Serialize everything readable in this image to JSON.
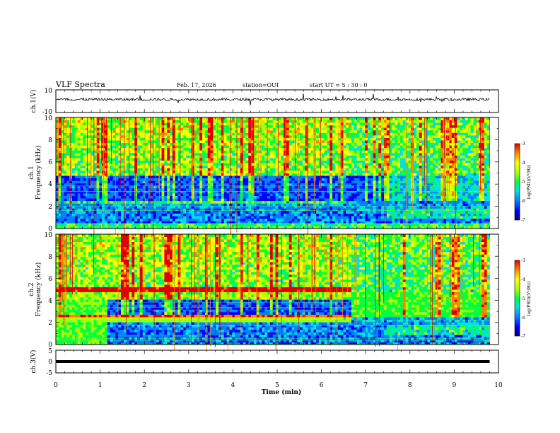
{
  "header": {
    "title": "VLF Spectra",
    "date": "Feb. 17, 2026",
    "station": "station=OUI",
    "start": "start  UT =   5 : 30 : 0"
  },
  "colormap": {
    "stops": [
      "#00007a",
      "#0000ff",
      "#0080ff",
      "#00e0e0",
      "#00ff40",
      "#b0ff00",
      "#ffff00",
      "#ff8000",
      "#e00000"
    ]
  },
  "chart_data": {
    "type": "heatmap",
    "x": {
      "label": "Time  (min)",
      "range": [
        0,
        10
      ],
      "ticks": [
        "0",
        "1",
        "2",
        "3",
        "4",
        "5",
        "6",
        "7",
        "8",
        "9",
        "10"
      ]
    },
    "waveform_top": {
      "ylabel": "ch.1(V)",
      "ylim": [
        -10,
        10
      ],
      "ticks": [
        "10",
        "-10"
      ],
      "level": 1.5
    },
    "spectrogram_1": {
      "ylabel_line1": "ch.1",
      "ylabel_line2": "Frequency  (kHz)",
      "ylim": [
        0,
        10
      ],
      "yticks": [
        "0",
        "2",
        "4",
        "6",
        "8",
        "10"
      ],
      "colorbar": {
        "label": "log(PSD)(V²/Hz)",
        "range": [
          -7,
          -3
        ],
        "ticks": [
          "-3",
          "-4",
          "-5",
          "-6",
          "-7"
        ]
      }
    },
    "spectrogram_2": {
      "ylabel_line1": "ch.2",
      "ylabel_line2": "Frequency  (kHz)",
      "ylim": [
        0,
        10
      ],
      "yticks": [
        "0",
        "2",
        "4",
        "6",
        "8",
        "10"
      ],
      "colorbar": {
        "label": "log(PSD)(V²/Hz)",
        "range": [
          -7,
          -3
        ],
        "ticks": [
          "-3",
          "-4",
          "-5",
          "-6",
          "-7"
        ]
      }
    },
    "waveform_bottom": {
      "ylabel": "ch.3(V)",
      "ylim": [
        -5,
        5
      ],
      "ticks": [
        "5",
        "0",
        "-5"
      ],
      "level": 0
    }
  }
}
